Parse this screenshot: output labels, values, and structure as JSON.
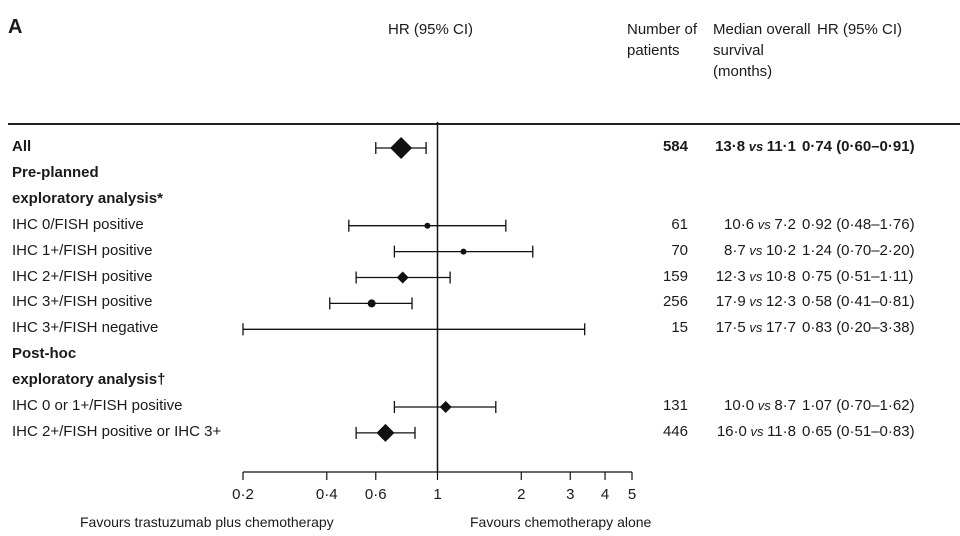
{
  "panel": "A",
  "headers": {
    "hr_plot": "HR (95% CI)",
    "patients": "Number of patients",
    "median": "Median overall survival (months)",
    "hr": "HR (95% CI)"
  },
  "favours": {
    "left": "Favours trastuzumab plus chemotherapy",
    "right": "Favours chemotherapy alone"
  },
  "chart_data": {
    "type": "forest",
    "x_scale": "log",
    "xlim": [
      0.2,
      5
    ],
    "reference_line": 1,
    "x_ticks": [
      {
        "value": 0.2,
        "label": "0·2"
      },
      {
        "value": 0.4,
        "label": "0·4"
      },
      {
        "value": 0.6,
        "label": "0·6"
      },
      {
        "value": 1,
        "label": "1"
      },
      {
        "value": 2,
        "label": "2"
      },
      {
        "value": 3,
        "label": "3"
      },
      {
        "value": 4,
        "label": "4"
      },
      {
        "value": 5,
        "label": "5"
      }
    ],
    "rows": [
      {
        "label": "All",
        "bold": true,
        "n": "584",
        "med_a": "13·8",
        "med_b": "11·1",
        "hr_text": "0·74 (0·60–0·91)",
        "hr": 0.74,
        "lo": 0.6,
        "hi": 0.91,
        "marker": "diamond",
        "size": 11
      },
      {
        "label": "Pre-planned",
        "bold": true,
        "header": true
      },
      {
        "label": "exploratory analysis*",
        "bold": true,
        "header": true
      },
      {
        "label": "IHC 0/FISH positive",
        "n": "61",
        "med_a": "10·6",
        "med_b": "7·2",
        "hr_text": "0·92 (0·48–1·76)",
        "hr": 0.92,
        "lo": 0.48,
        "hi": 1.76,
        "marker": "dot",
        "size": 3
      },
      {
        "label": "IHC 1+/FISH positive",
        "n": "70",
        "med_a": "8·7",
        "med_b": "10·2",
        "hr_text": "1·24 (0·70–2·20)",
        "hr": 1.24,
        "lo": 0.7,
        "hi": 2.2,
        "marker": "dot",
        "size": 3
      },
      {
        "label": "IHC 2+/FISH positive",
        "n": "159",
        "med_a": "12·3",
        "med_b": "10·8",
        "hr_text": "0·75 (0·51–1·11)",
        "hr": 0.75,
        "lo": 0.51,
        "hi": 1.11,
        "marker": "diamond",
        "size": 6
      },
      {
        "label": "IHC 3+/FISH positive",
        "n": "256",
        "med_a": "17·9",
        "med_b": "12·3",
        "hr_text": "0·58 (0·41–0·81)",
        "hr": 0.58,
        "lo": 0.41,
        "hi": 0.81,
        "marker": "dot",
        "size": 4
      },
      {
        "label": "IHC 3+/FISH negative",
        "n": "15",
        "med_a": "17·5",
        "med_b": "17·7",
        "hr_text": "0·83 (0·20–3·38)",
        "hr": 0.83,
        "lo": 0.2,
        "hi": 3.38,
        "marker": "none",
        "size": 0
      },
      {
        "label": "Post-hoc",
        "bold": true,
        "header": true
      },
      {
        "label": "exploratory analysis†",
        "bold": true,
        "header": true
      },
      {
        "label": "IHC 0 or 1+/FISH positive",
        "n": "131",
        "med_a": "10·0",
        "med_b": "8·7",
        "hr_text": "1·07 (0·70–1·62)",
        "hr": 1.07,
        "lo": 0.7,
        "hi": 1.62,
        "marker": "diamond",
        "size": 6
      },
      {
        "label": "IHC 2+/FISH positive or IHC 3+",
        "n": "446",
        "med_a": "16·0",
        "med_b": "11·8",
        "hr_text": "0·65 (0·51–0·83)",
        "hr": 0.65,
        "lo": 0.51,
        "hi": 0.83,
        "marker": "diamond",
        "size": 9
      }
    ]
  }
}
